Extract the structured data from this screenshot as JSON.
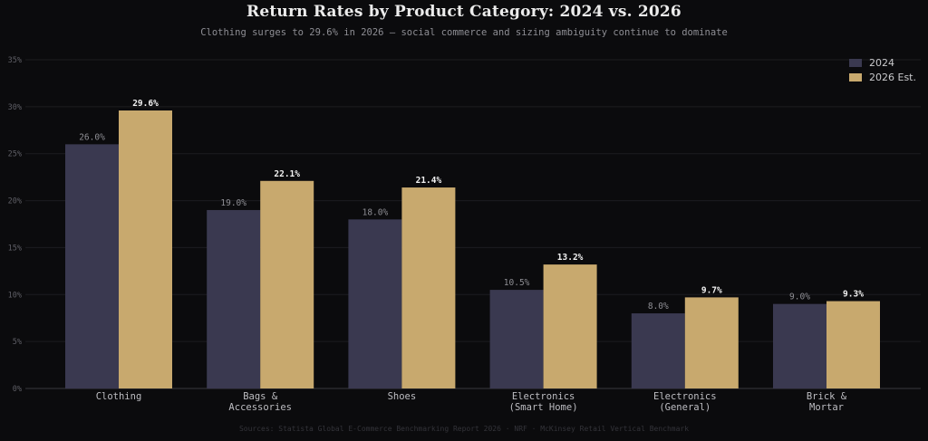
{
  "chart_data": {
    "type": "bar",
    "title": "Return Rates by Product Category: 2024 vs. 2026",
    "subtitle": "Clothing surges to 29.6% in 2026 — social commerce and sizing ambiguity continue to dominate",
    "source": "Sources: Statista Global E-Commerce Benchmarking Report 2026 · NRF · McKinsey Retail Vertical Benchmark",
    "categories": [
      [
        "Clothing"
      ],
      [
        "Bags &",
        "Accessories"
      ],
      [
        "Shoes"
      ],
      [
        "Electronics",
        "(Smart Home)"
      ],
      [
        "Electronics",
        "(General)"
      ],
      [
        "Brick &",
        "Mortar"
      ]
    ],
    "series": [
      {
        "name": "2024",
        "color": "#3a3950",
        "values": [
          26.0,
          19.0,
          18.0,
          10.5,
          8.0,
          9.0
        ]
      },
      {
        "name": "2026 Est.",
        "color": "#c8a96e",
        "values": [
          29.6,
          22.1,
          21.4,
          13.2,
          9.7,
          9.3
        ]
      }
    ],
    "ylim": [
      0,
      35
    ],
    "yticks": [
      "0%",
      "5%",
      "10%",
      "15%",
      "20%",
      "25%",
      "30%",
      "35%"
    ],
    "ytick_values": [
      0,
      5,
      10,
      15,
      20,
      25,
      30,
      35
    ],
    "grid": true,
    "legend_position": "top-right"
  }
}
